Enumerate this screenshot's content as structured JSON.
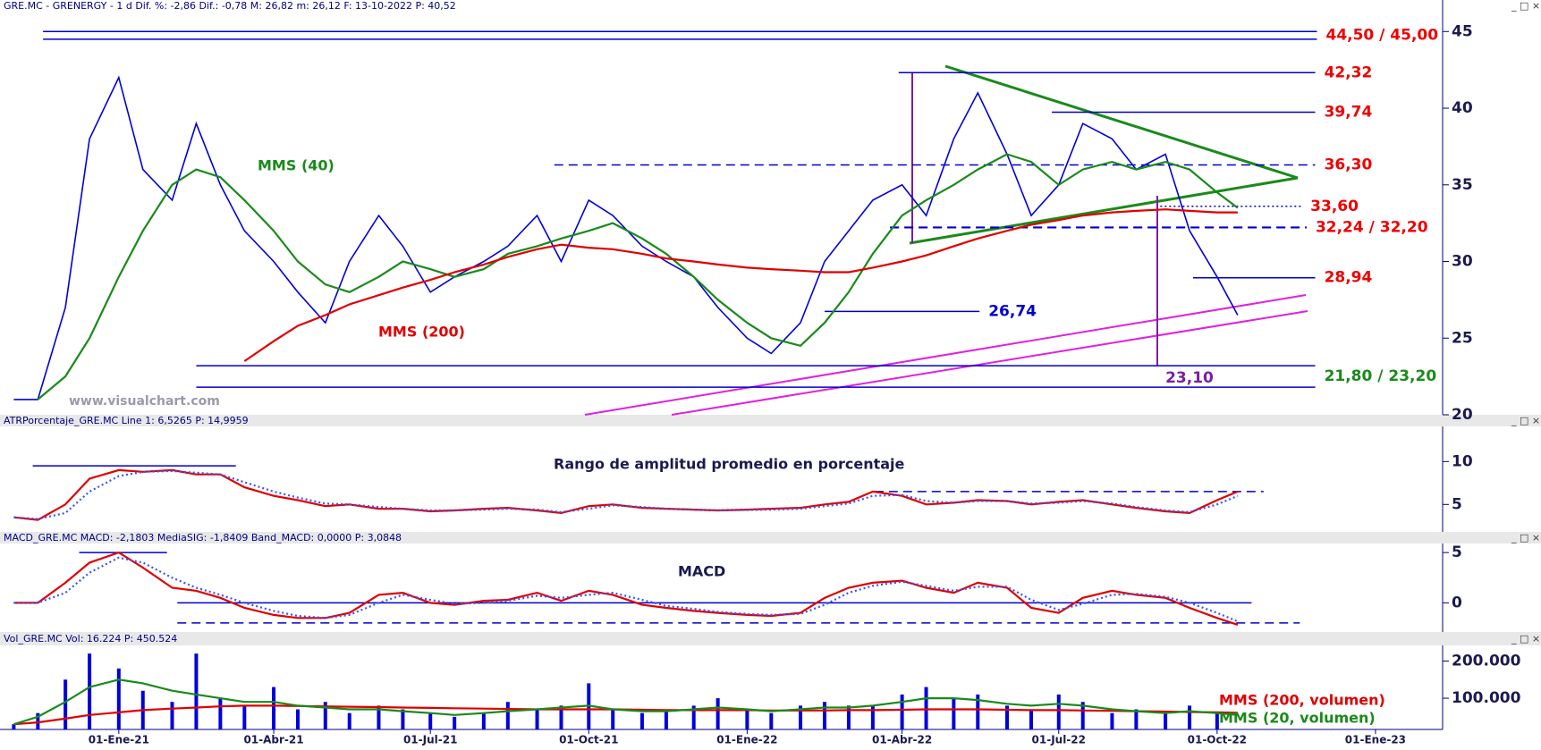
{
  "chart_data": [
    {
      "type": "line",
      "header": "GRE.MC - GRENERGY -  1 d Dif. %: -2,86  Dif.: -0,78  M: 26,82  m: 26,12  F: 13-10-2022  P: 40,52",
      "watermark": "www.visualchart.com",
      "x": [
        "2020-11-01",
        "2020-11-15",
        "2020-12-01",
        "2020-12-15",
        "2021-01-01",
        "2021-01-15",
        "2021-02-01",
        "2021-02-15",
        "2021-03-01",
        "2021-03-15",
        "2021-04-01",
        "2021-04-15",
        "2021-05-01",
        "2021-05-15",
        "2021-06-01",
        "2021-06-15",
        "2021-07-01",
        "2021-07-15",
        "2021-08-01",
        "2021-08-15",
        "2021-09-01",
        "2021-09-15",
        "2021-10-01",
        "2021-10-15",
        "2021-11-01",
        "2021-11-15",
        "2021-12-01",
        "2021-12-15",
        "2022-01-01",
        "2022-01-15",
        "2022-02-01",
        "2022-02-15",
        "2022-03-01",
        "2022-03-15",
        "2022-04-01",
        "2022-04-15",
        "2022-05-01",
        "2022-05-15",
        "2022-06-01",
        "2022-06-15",
        "2022-07-01",
        "2022-07-15",
        "2022-08-01",
        "2022-08-15",
        "2022-09-01",
        "2022-09-15",
        "2022-10-01",
        "2022-10-13"
      ],
      "series": [
        {
          "color": "#0000dd",
          "values": [
            21,
            21,
            27,
            38,
            42,
            36,
            34,
            39,
            35,
            32,
            30,
            28,
            26,
            30,
            33,
            31,
            28,
            29,
            30,
            31,
            33,
            30,
            34,
            33,
            31,
            30,
            29,
            27,
            25,
            24,
            26,
            30,
            32,
            34,
            35,
            33,
            38,
            41,
            37,
            33,
            35,
            39,
            38,
            36,
            37,
            32,
            29,
            26.5
          ]
        },
        {
          "name": "MMS (40)",
          "color": "#1a8a1a",
          "values": [
            null,
            21,
            22.5,
            25,
            29,
            32,
            35,
            36,
            35.5,
            34,
            32,
            30,
            28.5,
            28,
            29,
            30,
            29.5,
            29,
            29.5,
            30.5,
            31,
            31.5,
            32,
            32.5,
            31.5,
            30.5,
            29,
            27.5,
            26,
            25,
            24.5,
            26,
            28,
            30.5,
            33,
            34,
            35,
            36,
            37,
            36.5,
            35,
            36,
            36.5,
            36,
            36.5,
            36,
            34.5,
            33.5
          ]
        },
        {
          "name": "MMS (200)",
          "color": "#e00000",
          "values": [
            null,
            null,
            null,
            null,
            null,
            null,
            null,
            null,
            null,
            23.5,
            24.8,
            25.8,
            26.5,
            27.2,
            27.8,
            28.3,
            28.8,
            29.3,
            29.8,
            30.3,
            30.8,
            31.1,
            30.9,
            30.8,
            30.5,
            30.2,
            30,
            29.8,
            29.6,
            29.5,
            29.4,
            29.3,
            29.3,
            29.6,
            30,
            30.4,
            31,
            31.5,
            32,
            32.4,
            32.7,
            33,
            33.2,
            33.3,
            33.4,
            33.3,
            33.2,
            33.2
          ]
        }
      ],
      "levels": [
        {
          "values": [
            44.5,
            45
          ],
          "label": "44,50 /  45,00",
          "from": "2020-11-18",
          "to": "2022-11-28",
          "style": "solid",
          "color": "#0000cc",
          "label_color": "#ee0000"
        },
        {
          "values": [
            42.32
          ],
          "label": "42,32",
          "from": "2022-03-30",
          "to": "2022-11-27",
          "style": "solid",
          "color": "#0000cc",
          "label_color": "#ee0000"
        },
        {
          "values": [
            39.74
          ],
          "label": "39,74",
          "from": "2022-06-27",
          "to": "2022-11-27",
          "style": "solid",
          "color": "#0000cc",
          "label_color": "#ee0000"
        },
        {
          "values": [
            36.3
          ],
          "label": "36,30",
          "from": "2021-09-11",
          "to": "2022-11-27",
          "style": "dashed",
          "color": "#0000cc",
          "label_color": "#ee0000"
        },
        {
          "values": [
            33.6
          ],
          "label": "33,60",
          "from": "2022-08-29",
          "to": "2022-11-19",
          "style": "dotted",
          "color": "#0000cc",
          "label_color": "#ee0000"
        },
        {
          "values": [
            32.24,
            32.2
          ],
          "label": "32,24 / 32,20",
          "from": "2022-03-25",
          "to": "2022-11-22",
          "style": "dashed",
          "color": "#0000cc",
          "label_color": "#ee0000"
        },
        {
          "values": [
            28.94
          ],
          "label": "28,94",
          "from": "2022-09-17",
          "to": "2022-11-27",
          "style": "solid",
          "color": "#0000cc",
          "label_color": "#ee0000"
        },
        {
          "values": [
            26.74
          ],
          "label": "26,74",
          "from": "2022-02-15",
          "to": "2022-05-16",
          "style": "solid",
          "color": "#0000cc",
          "label_color": "#0000cc"
        },
        {
          "values": [
            21.8,
            23.2
          ],
          "label": "21,80 / 23,20",
          "from": "2021-02-15",
          "to": "2022-11-27",
          "style": "solid",
          "color": "#0000cc",
          "label_color": "#1a8a1a"
        }
      ],
      "targets": [
        {
          "value": 23.1,
          "label": "23,10",
          "x": "2022-09-01",
          "color": "#7b1fa2"
        }
      ],
      "xlim": [
        "2020-10-24",
        "2023-02-09"
      ],
      "ylim": [
        20,
        46.3
      ],
      "yticks": [
        20,
        25,
        30,
        35,
        40,
        45
      ]
    },
    {
      "type": "line",
      "header": "ATRPorcentaje_GRE.MC  Line 1: 6,5265  P: 14,9959",
      "title": "Rango de amplitud promedio en porcentaje",
      "x": [
        "2020-11-01",
        "2020-11-15",
        "2020-12-01",
        "2020-12-15",
        "2021-01-01",
        "2021-01-15",
        "2021-02-01",
        "2021-02-15",
        "2021-03-01",
        "2021-03-15",
        "2021-04-01",
        "2021-04-15",
        "2021-05-01",
        "2021-05-15",
        "2021-06-01",
        "2021-06-15",
        "2021-07-01",
        "2021-07-15",
        "2021-08-01",
        "2021-08-15",
        "2021-09-01",
        "2021-09-15",
        "2021-10-01",
        "2021-10-15",
        "2021-11-01",
        "2021-11-15",
        "2021-12-01",
        "2021-12-15",
        "2022-01-01",
        "2022-01-15",
        "2022-02-01",
        "2022-02-15",
        "2022-03-01",
        "2022-03-15",
        "2022-04-01",
        "2022-04-15",
        "2022-05-01",
        "2022-05-15",
        "2022-06-01",
        "2022-06-15",
        "2022-07-01",
        "2022-07-15",
        "2022-08-01",
        "2022-08-15",
        "2022-09-01",
        "2022-09-15",
        "2022-10-01",
        "2022-10-13"
      ],
      "series": [
        {
          "color": "#e00000",
          "values": [
            3.5,
            3.2,
            5,
            8,
            9,
            8.8,
            9,
            8.5,
            8.5,
            7,
            6,
            5.5,
            4.8,
            5,
            4.5,
            4.5,
            4.2,
            4.3,
            4.5,
            4.6,
            4.3,
            4,
            4.8,
            5,
            4.6,
            4.5,
            4.4,
            4.3,
            4.4,
            4.5,
            4.6,
            5,
            5.3,
            6.5,
            6,
            5,
            5.2,
            5.5,
            5.4,
            5,
            5.3,
            5.5,
            5,
            4.6,
            4.2,
            4,
            5.5,
            6.5
          ]
        },
        {
          "color": "#3355ff",
          "style": "dotted",
          "values": [
            3.5,
            3.3,
            4,
            6.5,
            8.3,
            8.8,
            8.9,
            8.7,
            8.5,
            7.6,
            6.5,
            5.8,
            5.1,
            5,
            4.7,
            4.5,
            4.3,
            4.3,
            4.4,
            4.5,
            4.4,
            4.1,
            4.5,
            4.9,
            4.7,
            4.5,
            4.4,
            4.3,
            4.35,
            4.4,
            4.5,
            4.8,
            5.1,
            6,
            6.1,
            5.4,
            5.2,
            5.4,
            5.4,
            5.1,
            5.2,
            5.4,
            5.1,
            4.7,
            4.3,
            4.1,
            5,
            6
          ]
        }
      ],
      "levels": [
        {
          "values": [
            9.5
          ],
          "from": "2020-11-12",
          "to": "2021-03-10",
          "style": "solid",
          "color": "#0000cc"
        },
        {
          "values": [
            6.5
          ],
          "from": "2022-03-16",
          "to": "2022-10-28",
          "style": "dashed",
          "color": "#0000cc"
        }
      ],
      "xlim": [
        "2020-10-24",
        "2023-02-09"
      ],
      "ylim": [
        1.8,
        14.1
      ],
      "yticks": [
        5,
        10
      ]
    },
    {
      "type": "line",
      "header": "MACD_GRE.MC  MACD: -2,1803  MediaSIG: -1,8409  Band_MACD: 0,0000  P: 3,0848",
      "title": "MACD",
      "x": [
        "2020-11-01",
        "2020-11-15",
        "2020-12-01",
        "2020-12-15",
        "2021-01-01",
        "2021-01-15",
        "2021-02-01",
        "2021-02-15",
        "2021-03-01",
        "2021-03-15",
        "2021-04-01",
        "2021-04-15",
        "2021-05-01",
        "2021-05-15",
        "2021-06-01",
        "2021-06-15",
        "2021-07-01",
        "2021-07-15",
        "2021-08-01",
        "2021-08-15",
        "2021-09-01",
        "2021-09-15",
        "2021-10-01",
        "2021-10-15",
        "2021-11-01",
        "2021-11-15",
        "2021-12-01",
        "2021-12-15",
        "2022-01-01",
        "2022-01-15",
        "2022-02-01",
        "2022-02-15",
        "2022-03-01",
        "2022-03-15",
        "2022-04-01",
        "2022-04-15",
        "2022-05-01",
        "2022-05-15",
        "2022-06-01",
        "2022-06-15",
        "2022-07-01",
        "2022-07-15",
        "2022-08-01",
        "2022-08-15",
        "2022-09-01",
        "2022-09-15",
        "2022-10-01",
        "2022-10-13"
      ],
      "series": [
        {
          "color": "#e00000",
          "values": [
            0,
            0,
            2,
            4,
            5,
            3.5,
            1.5,
            1.2,
            0.5,
            -0.5,
            -1.2,
            -1.5,
            -1.5,
            -1,
            0.8,
            1,
            0,
            -0.2,
            0.2,
            0.3,
            1,
            0.2,
            1.2,
            0.8,
            -0.2,
            -0.5,
            -0.8,
            -1,
            -1.2,
            -1.3,
            -1,
            0.5,
            1.5,
            2,
            2.2,
            1.5,
            1,
            2,
            1.5,
            -0.5,
            -1,
            0.5,
            1.2,
            0.8,
            0.5,
            -0.5,
            -1.5,
            -2.18
          ]
        },
        {
          "color": "#3355ff",
          "style": "dotted",
          "values": [
            0,
            0,
            1,
            3,
            4.5,
            4,
            2.5,
            1.5,
            0.8,
            0,
            -0.8,
            -1.3,
            -1.5,
            -1.2,
            0,
            0.8,
            0.3,
            -0.1,
            0,
            0.2,
            0.7,
            0.5,
            0.8,
            1,
            0.3,
            -0.3,
            -0.6,
            -0.9,
            -1.1,
            -1.2,
            -1.1,
            -0.2,
            1,
            1.7,
            2.1,
            1.7,
            1.2,
            1.6,
            1.6,
            0.3,
            -0.7,
            -0.1,
            0.8,
            0.9,
            0.6,
            0,
            -1,
            -1.84
          ]
        }
      ],
      "levels": [
        {
          "values": [
            5
          ],
          "from": "2020-12-09",
          "to": "2021-01-29",
          "style": "solid",
          "color": "#0000cc"
        },
        {
          "values": [
            0
          ],
          "from": "2021-02-04",
          "to": "2022-10-21",
          "style": "solid",
          "color": "#0000cc"
        },
        {
          "values": [
            -2
          ],
          "from": "2021-02-04",
          "to": "2022-11-18",
          "style": "dashed",
          "color": "#0000cc"
        }
      ],
      "xlim": [
        "2020-10-24",
        "2023-02-09"
      ],
      "ylim": [
        -2.9,
        5.9
      ],
      "yticks": [
        0,
        5
      ]
    },
    {
      "type": "bar",
      "header": "Vol_GRE.MC  Vol: 16.224  P: 450.524",
      "x": [
        "2020-11-01",
        "2020-11-15",
        "2020-12-01",
        "2020-12-15",
        "2021-01-01",
        "2021-01-15",
        "2021-02-01",
        "2021-02-15",
        "2021-03-01",
        "2021-03-15",
        "2021-04-01",
        "2021-04-15",
        "2021-05-01",
        "2021-05-15",
        "2021-06-01",
        "2021-06-15",
        "2021-07-01",
        "2021-07-15",
        "2021-08-01",
        "2021-08-15",
        "2021-09-01",
        "2021-09-15",
        "2021-10-01",
        "2021-10-15",
        "2021-11-01",
        "2021-11-15",
        "2021-12-01",
        "2021-12-15",
        "2022-01-01",
        "2022-01-15",
        "2022-02-01",
        "2022-02-15",
        "2022-03-01",
        "2022-03-15",
        "2022-04-01",
        "2022-04-15",
        "2022-05-01",
        "2022-05-15",
        "2022-06-01",
        "2022-06-15",
        "2022-07-01",
        "2022-07-15",
        "2022-08-01",
        "2022-08-15",
        "2022-09-01",
        "2022-09-15",
        "2022-10-01",
        "2022-10-13"
      ],
      "series": [
        {
          "type": "bar",
          "color": "#0000dd",
          "values": [
            30000,
            60000,
            150000,
            220000,
            180000,
            120000,
            90000,
            220000,
            100000,
            80000,
            130000,
            70000,
            90000,
            60000,
            80000,
            70000,
            60000,
            50000,
            60000,
            90000,
            70000,
            80000,
            140000,
            70000,
            60000,
            70000,
            80000,
            100000,
            70000,
            60000,
            80000,
            90000,
            80000,
            80000,
            110000,
            130000,
            100000,
            110000,
            80000,
            70000,
            110000,
            90000,
            60000,
            70000,
            60000,
            80000,
            60000,
            16224
          ]
        },
        {
          "type": "line",
          "name": "MMS (200, volumen)",
          "color": "#e00000",
          "values": [
            30000,
            35000,
            45000,
            55000,
            62000,
            68000,
            72000,
            75000,
            78000,
            80000,
            80000,
            79000,
            78000,
            77000,
            76000,
            75000,
            74000,
            73000,
            72000,
            71000,
            70000,
            70000,
            70000,
            70000,
            69000,
            68000,
            68000,
            68000,
            68000,
            67000,
            67000,
            67000,
            68000,
            68000,
            69000,
            70000,
            70000,
            70000,
            69000,
            68000,
            68000,
            67000,
            66000,
            65000,
            64000,
            63000,
            62000,
            61000
          ]
        },
        {
          "type": "line",
          "name": "MMS (20, volumen)",
          "color": "#1a8a1a",
          "values": [
            30000,
            50000,
            90000,
            130000,
            150000,
            140000,
            120000,
            110000,
            100000,
            90000,
            90000,
            80000,
            75000,
            70000,
            70000,
            65000,
            60000,
            55000,
            60000,
            65000,
            70000,
            75000,
            80000,
            70000,
            65000,
            65000,
            70000,
            75000,
            70000,
            65000,
            70000,
            75000,
            75000,
            80000,
            90000,
            100000,
            100000,
            95000,
            85000,
            80000,
            85000,
            80000,
            70000,
            65000,
            60000,
            65000,
            60000,
            55000
          ]
        }
      ],
      "xlim": [
        "2020-10-24",
        "2023-02-09"
      ],
      "xticks": [
        {
          "value": "2021-01-01",
          "label": "01-Ene-21"
        },
        {
          "value": "2021-04-01",
          "label": "01-Abr-21"
        },
        {
          "value": "2021-07-01",
          "label": "01-Jul-21"
        },
        {
          "value": "2021-10-01",
          "label": "01-Oct-21"
        },
        {
          "value": "2022-01-01",
          "label": "01-Ene-22"
        },
        {
          "value": "2022-04-01",
          "label": "01-Abr-22"
        },
        {
          "value": "2022-07-01",
          "label": "01-Jul-22"
        },
        {
          "value": "2022-10-01",
          "label": "01-Oct-22"
        },
        {
          "value": "2023-01-01",
          "label": "01-Ene-23"
        }
      ],
      "ylim": [
        16000,
        242000
      ],
      "yticks": [
        {
          "value": 100000,
          "label": "100.000"
        },
        {
          "value": 200000,
          "label": "200.000"
        }
      ]
    }
  ]
}
